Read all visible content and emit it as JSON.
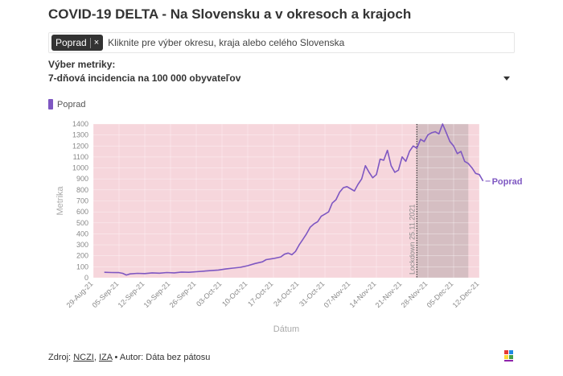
{
  "title": "COVID-19 DELTA - Na Slovensku a v okresoch a krajoch",
  "selector": {
    "chip_label": "Poprad",
    "chip_close": "×",
    "placeholder": "Kliknite pre výber okresu, kraja alebo celého Slovenska"
  },
  "metric": {
    "label": "Výber metriky:",
    "value": "7-dňová incidencia na 100 000 obyvateľov"
  },
  "legend": {
    "label": "Poprad"
  },
  "footer": {
    "prefix": "Zdroj: ",
    "source1": "NCZI",
    "comma": ", ",
    "source2": "IZA",
    "suffix": " • Autor: Dáta bez pátosu"
  },
  "colors": {
    "line": "#7e57c2",
    "plot_bg": "#f6d6dc",
    "shade": "#c9b6b9"
  },
  "chart_data": {
    "type": "line",
    "title": "",
    "xlabel": "Dátum",
    "ylabel": "Metrika",
    "ylim": [
      0,
      1400
    ],
    "xlim": [
      "2021-08-29",
      "2021-12-12"
    ],
    "y_ticks": [
      0,
      100,
      200,
      300,
      400,
      500,
      600,
      700,
      800,
      900,
      1000,
      1100,
      1200,
      1300,
      1400
    ],
    "x_ticks": [
      "29-Aug-21",
      "05-Sep-21",
      "12-Sep-21",
      "19-Sep-21",
      "26-Sep-21",
      "03-Oct-21",
      "10-Oct-21",
      "17-Oct-21",
      "24-Oct-21",
      "31-Oct-21",
      "07-Nov-21",
      "14-Nov-21",
      "21-Nov-21",
      "28-Nov-21",
      "05-Dec-21",
      "12-Dec-21"
    ],
    "grid": true,
    "legend_position": "top-left",
    "annotation": {
      "label": "Lockdown 25.11.2021",
      "date": "2021-11-25",
      "shade_from": "2021-11-25",
      "shade_to": "2021-12-09"
    },
    "end_label": "Poprad",
    "series": [
      {
        "name": "Poprad",
        "points": [
          [
            "2021-09-01",
            50
          ],
          [
            "2021-09-03",
            48
          ],
          [
            "2021-09-05",
            47
          ],
          [
            "2021-09-06",
            40
          ],
          [
            "2021-09-07",
            25
          ],
          [
            "2021-09-08",
            35
          ],
          [
            "2021-09-10",
            40
          ],
          [
            "2021-09-12",
            38
          ],
          [
            "2021-09-14",
            45
          ],
          [
            "2021-09-16",
            42
          ],
          [
            "2021-09-18",
            48
          ],
          [
            "2021-09-20",
            45
          ],
          [
            "2021-09-22",
            52
          ],
          [
            "2021-09-24",
            50
          ],
          [
            "2021-09-26",
            55
          ],
          [
            "2021-09-28",
            60
          ],
          [
            "2021-09-30",
            65
          ],
          [
            "2021-10-02",
            70
          ],
          [
            "2021-10-04",
            80
          ],
          [
            "2021-10-06",
            88
          ],
          [
            "2021-10-08",
            95
          ],
          [
            "2021-10-10",
            110
          ],
          [
            "2021-10-12",
            130
          ],
          [
            "2021-10-14",
            145
          ],
          [
            "2021-10-15",
            165
          ],
          [
            "2021-10-17",
            175
          ],
          [
            "2021-10-19",
            190
          ],
          [
            "2021-10-20",
            215
          ],
          [
            "2021-10-21",
            225
          ],
          [
            "2021-10-22",
            210
          ],
          [
            "2021-10-23",
            240
          ],
          [
            "2021-10-24",
            300
          ],
          [
            "2021-10-25",
            350
          ],
          [
            "2021-10-26",
            400
          ],
          [
            "2021-10-27",
            460
          ],
          [
            "2021-10-28",
            490
          ],
          [
            "2021-10-29",
            510
          ],
          [
            "2021-10-30",
            560
          ],
          [
            "2021-10-31",
            580
          ],
          [
            "2021-11-01",
            600
          ],
          [
            "2021-11-02",
            680
          ],
          [
            "2021-11-03",
            710
          ],
          [
            "2021-11-04",
            780
          ],
          [
            "2021-11-05",
            820
          ],
          [
            "2021-11-06",
            830
          ],
          [
            "2021-11-07",
            810
          ],
          [
            "2021-11-08",
            790
          ],
          [
            "2021-11-09",
            850
          ],
          [
            "2021-11-10",
            900
          ],
          [
            "2021-11-11",
            1020
          ],
          [
            "2021-11-12",
            960
          ],
          [
            "2021-11-13",
            910
          ],
          [
            "2021-11-14",
            940
          ],
          [
            "2021-11-15",
            1080
          ],
          [
            "2021-11-16",
            1070
          ],
          [
            "2021-11-17",
            1160
          ],
          [
            "2021-11-18",
            1020
          ],
          [
            "2021-11-19",
            960
          ],
          [
            "2021-11-20",
            980
          ],
          [
            "2021-11-21",
            1100
          ],
          [
            "2021-11-22",
            1060
          ],
          [
            "2021-11-23",
            1150
          ],
          [
            "2021-11-24",
            1200
          ],
          [
            "2021-11-25",
            1180
          ],
          [
            "2021-11-26",
            1260
          ],
          [
            "2021-11-27",
            1240
          ],
          [
            "2021-11-28",
            1300
          ],
          [
            "2021-11-29",
            1320
          ],
          [
            "2021-11-30",
            1330
          ],
          [
            "2021-12-01",
            1310
          ],
          [
            "2021-12-02",
            1400
          ],
          [
            "2021-12-03",
            1320
          ],
          [
            "2021-12-04",
            1240
          ],
          [
            "2021-12-05",
            1200
          ],
          [
            "2021-12-06",
            1130
          ],
          [
            "2021-12-07",
            1150
          ],
          [
            "2021-12-08",
            1060
          ],
          [
            "2021-12-09",
            1040
          ],
          [
            "2021-12-10",
            1000
          ],
          [
            "2021-12-11",
            950
          ],
          [
            "2021-12-12",
            940
          ],
          [
            "2021-12-13",
            880
          ]
        ]
      }
    ]
  }
}
